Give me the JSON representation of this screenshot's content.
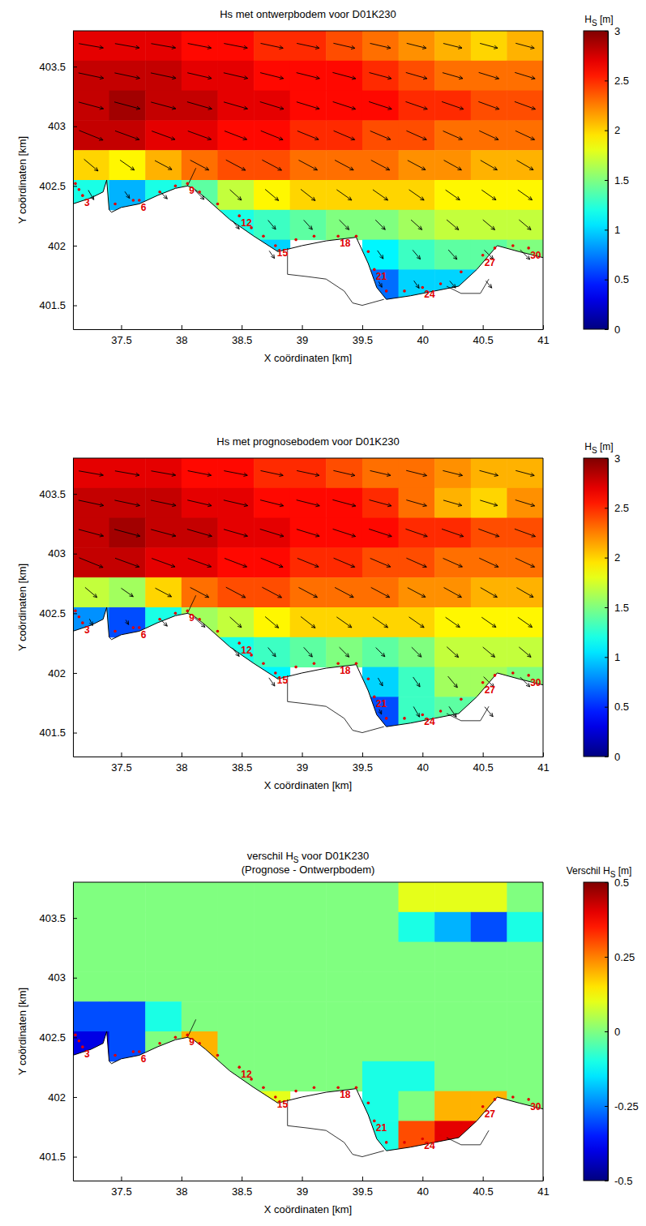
{
  "chart_data": [
    {
      "type": "heatmap",
      "title": "Hs met ontwerpbodem voor D01K230",
      "x_label": "X coördinaten [km]",
      "y_label": "Y coördinaten [km]",
      "xlim": [
        37.1,
        41
      ],
      "xticks": [
        37.5,
        38,
        38.5,
        39,
        39.5,
        40,
        40.5,
        41
      ],
      "ylim": [
        401.3,
        403.8
      ],
      "yticks": [
        401.5,
        402,
        402.5,
        403,
        403.5
      ],
      "x": [
        37.25,
        37.55,
        37.85,
        38.15,
        38.45,
        38.75,
        39.05,
        39.35,
        39.65,
        39.95,
        40.25,
        40.55,
        40.85
      ],
      "y": [
        403.675,
        403.425,
        403.175,
        402.925,
        402.675,
        402.425,
        402.175,
        401.925,
        401.675,
        401.425
      ],
      "values": [
        [
          2.7,
          2.7,
          2.7,
          2.6,
          2.6,
          2.5,
          2.5,
          2.4,
          2.3,
          2.2,
          2.1,
          2.0,
          2.1
        ],
        [
          2.8,
          2.8,
          2.8,
          2.7,
          2.7,
          2.6,
          2.6,
          2.6,
          2.5,
          2.4,
          2.3,
          2.3,
          2.3
        ],
        [
          2.8,
          2.9,
          2.8,
          2.8,
          2.7,
          2.7,
          2.6,
          2.6,
          2.6,
          2.5,
          2.5,
          2.4,
          2.4
        ],
        [
          2.8,
          2.8,
          2.7,
          2.7,
          2.6,
          2.6,
          2.5,
          2.5,
          2.4,
          2.4,
          2.3,
          2.3,
          2.3
        ],
        [
          2.0,
          1.9,
          2.1,
          2.3,
          2.4,
          2.4,
          2.3,
          2.3,
          2.3,
          2.2,
          2.2,
          2.1,
          2.1
        ],
        [
          1.2,
          0.9,
          1.2,
          1.4,
          1.7,
          1.9,
          2.0,
          2.0,
          2.0,
          2.0,
          1.9,
          1.9,
          1.9
        ],
        [
          null,
          null,
          null,
          null,
          1.2,
          1.3,
          1.4,
          1.5,
          1.5,
          1.6,
          1.7,
          1.7,
          1.7
        ],
        [
          null,
          null,
          null,
          null,
          null,
          1.0,
          null,
          null,
          1.1,
          1.3,
          1.4,
          1.4,
          1.5
        ],
        [
          null,
          null,
          null,
          null,
          null,
          null,
          null,
          null,
          0.7,
          1.0,
          1.0,
          1.0,
          null
        ],
        [
          null,
          null,
          null,
          null,
          null,
          null,
          null,
          null,
          null,
          null,
          null,
          null,
          null
        ]
      ],
      "arrow_angle": [
        [
          10,
          10,
          10,
          11,
          11,
          12,
          12,
          13,
          13,
          14,
          14,
          15,
          15
        ],
        [
          12,
          12,
          12,
          13,
          13,
          14,
          14,
          15,
          15,
          16,
          16,
          17,
          17
        ],
        [
          15,
          15,
          15,
          16,
          16,
          17,
          17,
          18,
          18,
          19,
          19,
          20,
          20
        ],
        [
          22,
          20,
          20,
          20,
          21,
          22,
          22,
          23,
          23,
          24,
          24,
          25,
          25
        ],
        [
          40,
          35,
          28,
          28,
          28,
          28,
          28,
          28,
          28,
          28,
          29,
          30,
          30
        ],
        [
          60,
          55,
          45,
          45,
          42,
          40,
          38,
          35,
          35,
          35,
          35,
          35,
          35
        ],
        [
          null,
          null,
          null,
          null,
          50,
          50,
          48,
          45,
          45,
          42,
          40,
          40,
          40
        ],
        [
          null,
          null,
          null,
          null,
          null,
          55,
          null,
          null,
          55,
          50,
          48,
          45,
          45
        ],
        [
          null,
          null,
          null,
          null,
          null,
          null,
          null,
          null,
          60,
          55,
          50,
          50,
          null
        ],
        [
          null,
          null,
          null,
          null,
          null,
          null,
          null,
          null,
          null,
          null,
          null,
          null,
          null
        ]
      ],
      "colorbar": {
        "label": {
          "text": "H",
          "subscript": "S",
          "suffix": " [m]"
        },
        "lim": [
          0,
          3
        ],
        "ticks": [
          0,
          0.5,
          1,
          1.5,
          2,
          2.5,
          3
        ]
      }
    },
    {
      "type": "heatmap",
      "title": "Hs met prognosebodem voor D01K230",
      "x_label": "X coördinaten [km]",
      "y_label": "Y coördinaten [km]",
      "xlim": [
        37.1,
        41
      ],
      "xticks": [
        37.5,
        38,
        38.5,
        39,
        39.5,
        40,
        40.5,
        41
      ],
      "ylim": [
        401.3,
        403.8
      ],
      "yticks": [
        401.5,
        402,
        402.5,
        403,
        403.5
      ],
      "x": [
        37.25,
        37.55,
        37.85,
        38.15,
        38.45,
        38.75,
        39.05,
        39.35,
        39.65,
        39.95,
        40.25,
        40.55,
        40.85
      ],
      "y": [
        403.675,
        403.425,
        403.175,
        402.925,
        402.675,
        402.425,
        402.175,
        401.925,
        401.675,
        401.425
      ],
      "values": [
        [
          2.7,
          2.7,
          2.7,
          2.6,
          2.6,
          2.5,
          2.5,
          2.4,
          2.3,
          2.3,
          2.2,
          2.1,
          2.1
        ],
        [
          2.8,
          2.8,
          2.8,
          2.7,
          2.7,
          2.6,
          2.6,
          2.6,
          2.5,
          2.3,
          2.1,
          2.0,
          2.2
        ],
        [
          2.8,
          2.9,
          2.8,
          2.8,
          2.7,
          2.7,
          2.6,
          2.6,
          2.6,
          2.5,
          2.5,
          2.4,
          2.4
        ],
        [
          2.8,
          2.8,
          2.7,
          2.7,
          2.6,
          2.6,
          2.5,
          2.5,
          2.4,
          2.4,
          2.3,
          2.3,
          2.3
        ],
        [
          1.7,
          1.6,
          2.0,
          2.3,
          2.4,
          2.4,
          2.3,
          2.3,
          2.3,
          2.2,
          2.2,
          2.1,
          2.1
        ],
        [
          0.8,
          0.6,
          1.2,
          1.6,
          1.7,
          1.9,
          2.0,
          2.0,
          2.0,
          2.0,
          1.9,
          1.9,
          1.9
        ],
        [
          null,
          null,
          null,
          null,
          1.2,
          1.3,
          1.4,
          1.5,
          1.4,
          1.5,
          1.7,
          1.7,
          1.7
        ],
        [
          null,
          null,
          null,
          null,
          null,
          1.1,
          null,
          null,
          1.0,
          1.3,
          1.6,
          1.6,
          1.5
        ],
        [
          null,
          null,
          null,
          null,
          null,
          null,
          null,
          null,
          0.6,
          1.3,
          1.4,
          1.4,
          null
        ],
        [
          null,
          null,
          null,
          null,
          null,
          null,
          null,
          null,
          null,
          null,
          null,
          null,
          null
        ]
      ],
      "arrow_angle": [
        [
          10,
          10,
          10,
          11,
          11,
          12,
          12,
          13,
          13,
          14,
          14,
          15,
          15
        ],
        [
          12,
          12,
          12,
          13,
          13,
          14,
          14,
          15,
          15,
          16,
          16,
          17,
          17
        ],
        [
          15,
          15,
          15,
          16,
          16,
          17,
          17,
          18,
          18,
          19,
          19,
          20,
          20
        ],
        [
          22,
          20,
          20,
          20,
          21,
          22,
          22,
          23,
          23,
          24,
          24,
          25,
          25
        ],
        [
          40,
          35,
          28,
          28,
          28,
          28,
          28,
          28,
          28,
          28,
          29,
          30,
          30
        ],
        [
          65,
          60,
          45,
          42,
          42,
          40,
          38,
          35,
          35,
          35,
          35,
          35,
          35
        ],
        [
          null,
          null,
          null,
          null,
          50,
          50,
          48,
          45,
          45,
          45,
          42,
          40,
          40
        ],
        [
          null,
          null,
          null,
          null,
          null,
          55,
          null,
          null,
          60,
          55,
          50,
          45,
          45
        ],
        [
          null,
          null,
          null,
          null,
          null,
          null,
          null,
          null,
          65,
          60,
          55,
          50,
          null
        ],
        [
          null,
          null,
          null,
          null,
          null,
          null,
          null,
          null,
          null,
          null,
          null,
          null,
          null
        ]
      ],
      "colorbar": {
        "label": {
          "text": "H",
          "subscript": "S",
          "suffix": " [m]"
        },
        "lim": [
          0,
          3
        ],
        "ticks": [
          0,
          0.5,
          1,
          1.5,
          2,
          2.5,
          3
        ]
      }
    },
    {
      "type": "heatmap",
      "title": {
        "text": "verschil H",
        "subscript": "S",
        "suffix": " voor D01K230"
      },
      "subtitle": "(Prognose - Ontwerpbodem)",
      "x_label": "X coördinaten [km]",
      "y_label": "Y coördinaten [km]",
      "xlim": [
        37.1,
        41
      ],
      "xticks": [
        37.5,
        38,
        38.5,
        39,
        39.5,
        40,
        40.5,
        41
      ],
      "ylim": [
        401.3,
        403.8
      ],
      "yticks": [
        401.5,
        402,
        402.5,
        403,
        403.5
      ],
      "x": [
        37.25,
        37.55,
        37.85,
        38.15,
        38.45,
        38.75,
        39.05,
        39.35,
        39.65,
        39.95,
        40.25,
        40.55,
        40.85
      ],
      "y": [
        403.675,
        403.425,
        403.175,
        402.925,
        402.675,
        402.425,
        402.175,
        401.925,
        401.675,
        401.425
      ],
      "values": [
        [
          0,
          0,
          0,
          0,
          0,
          0,
          0,
          0,
          0,
          0.1,
          0.1,
          0.1,
          0
        ],
        [
          0,
          0,
          0,
          0,
          0,
          0,
          0,
          0,
          0,
          -0.1,
          -0.2,
          -0.3,
          -0.1
        ],
        [
          0,
          0,
          0,
          0,
          0,
          0,
          0,
          0,
          0,
          0,
          0,
          0,
          0
        ],
        [
          0,
          0,
          0,
          0,
          0,
          0,
          0,
          0,
          0,
          0,
          0,
          0,
          0
        ],
        [
          -0.3,
          -0.3,
          -0.1,
          0,
          0,
          0,
          0,
          0,
          0,
          0,
          0,
          0,
          0
        ],
        [
          -0.4,
          -0.3,
          0,
          0.2,
          0,
          0,
          0,
          0,
          0,
          0,
          0,
          0,
          0
        ],
        [
          null,
          null,
          null,
          null,
          0,
          0,
          0,
          0,
          -0.1,
          -0.1,
          0,
          0,
          0
        ],
        [
          null,
          null,
          null,
          null,
          null,
          0.1,
          null,
          null,
          -0.1,
          0,
          0.2,
          0.2,
          0
        ],
        [
          null,
          null,
          null,
          null,
          null,
          null,
          null,
          null,
          -0.1,
          0.3,
          0.4,
          0.4,
          null
        ],
        [
          null,
          null,
          null,
          null,
          null,
          null,
          null,
          null,
          null,
          null,
          null,
          null,
          null
        ]
      ],
      "colorbar": {
        "label": {
          "text": "Verschil H",
          "subscript": "S",
          "suffix": " [m]"
        },
        "lim": [
          -0.5,
          0.5
        ],
        "ticks": [
          -0.5,
          -0.25,
          0,
          0.25,
          0.5
        ]
      }
    }
  ],
  "map": {
    "coastline": {
      "x": [
        37.1,
        37.25,
        37.35,
        37.38,
        37.4,
        37.42,
        37.5,
        37.65,
        37.8,
        37.95,
        38.05,
        38.1,
        38.2,
        38.4,
        38.6,
        38.8,
        39.0,
        39.2,
        39.45,
        39.55,
        39.62,
        39.7,
        39.9,
        40.1,
        40.3,
        40.45,
        40.62,
        40.8,
        41.0
      ],
      "y": [
        402.35,
        402.4,
        402.45,
        402.55,
        402.3,
        402.28,
        402.32,
        402.35,
        402.42,
        402.48,
        402.5,
        402.48,
        402.4,
        402.22,
        402.08,
        401.95,
        402.0,
        402.04,
        402.07,
        401.85,
        401.65,
        401.55,
        401.58,
        401.62,
        401.66,
        401.8,
        402.0,
        401.95,
        401.9
      ]
    },
    "structures": [
      {
        "x": [
          38.88,
          38.88,
          39.05,
          39.2,
          39.35,
          39.42,
          39.5,
          39.68
        ],
        "y": [
          401.98,
          401.76,
          401.74,
          401.72,
          401.62,
          401.52,
          401.5,
          401.55
        ]
      },
      {
        "x": [
          40.2,
          40.32,
          40.48,
          40.55
        ],
        "y": [
          401.66,
          401.6,
          401.6,
          401.72
        ]
      },
      {
        "x": [
          38.05,
          38.12
        ],
        "y": [
          402.5,
          402.65
        ]
      }
    ],
    "points": {
      "x": [
        37.12,
        37.15,
        37.18,
        37.45,
        37.6,
        37.65,
        37.82,
        37.95,
        38.05,
        38.15,
        38.3,
        38.48,
        38.58,
        38.68,
        38.78,
        38.95,
        39.1,
        39.3,
        39.45,
        39.55,
        39.6,
        39.7,
        39.85,
        40.0,
        40.15,
        40.32,
        40.5,
        40.6,
        40.75,
        40.88
      ],
      "y": [
        402.52,
        402.47,
        402.42,
        402.35,
        402.38,
        402.38,
        402.45,
        402.5,
        402.52,
        402.45,
        402.35,
        402.25,
        402.15,
        402.08,
        402.0,
        402.05,
        402.08,
        402.08,
        402.08,
        401.95,
        401.8,
        401.62,
        401.62,
        401.65,
        401.68,
        401.78,
        401.92,
        401.98,
        402.0,
        401.98
      ],
      "labels": [
        null,
        null,
        "3",
        null,
        null,
        "6",
        null,
        null,
        "9",
        null,
        null,
        "12",
        null,
        null,
        "15",
        null,
        null,
        "18",
        null,
        null,
        "21",
        null,
        null,
        "24",
        null,
        null,
        "27",
        null,
        null,
        "30"
      ]
    }
  }
}
